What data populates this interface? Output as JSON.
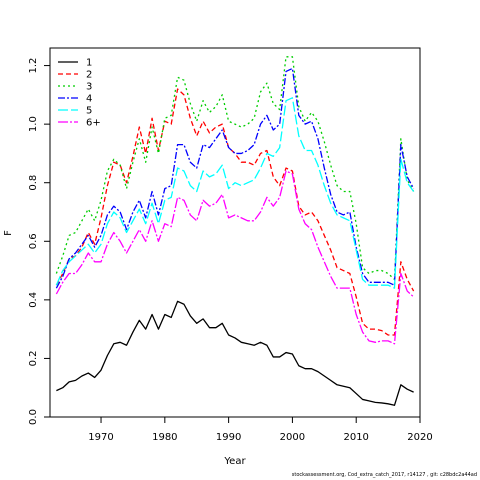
{
  "chart_data": {
    "type": "line",
    "xlabel": "Year",
    "ylabel": "F",
    "xlim": [
      1962,
      2020
    ],
    "ylim": [
      0,
      1.26
    ],
    "x_ticks": [
      1970,
      1980,
      1990,
      2000,
      2010,
      2020
    ],
    "x_tick_labels": [
      "1970",
      "1980",
      "1990",
      "2000",
      "2010",
      "2020"
    ],
    "y_ticks": [
      0,
      0.2,
      0.4,
      0.6,
      0.8,
      1.0,
      1.2
    ],
    "y_tick_labels": [
      "0.0",
      "0.2",
      "0.4",
      "0.6",
      "0.8",
      "1.0",
      "1.2"
    ],
    "legend_position": "top-left",
    "grid": false,
    "x": [
      1963,
      1964,
      1965,
      1966,
      1967,
      1968,
      1969,
      1970,
      1971,
      1972,
      1973,
      1974,
      1975,
      1976,
      1977,
      1978,
      1979,
      1980,
      1981,
      1982,
      1983,
      1984,
      1985,
      1986,
      1987,
      1988,
      1989,
      1990,
      1991,
      1992,
      1993,
      1994,
      1995,
      1996,
      1997,
      1998,
      1999,
      2000,
      2001,
      2002,
      2003,
      2004,
      2005,
      2006,
      2007,
      2008,
      2009,
      2010,
      2011,
      2012,
      2013,
      2014,
      2015,
      2016,
      2017,
      2018,
      2019
    ],
    "series": [
      {
        "name": "1",
        "color": "#000000",
        "dash": "",
        "width": 1.3,
        "values": [
          0.09,
          0.1,
          0.12,
          0.125,
          0.14,
          0.15,
          0.135,
          0.16,
          0.21,
          0.25,
          0.255,
          0.245,
          0.29,
          0.33,
          0.3,
          0.35,
          0.3,
          0.35,
          0.34,
          0.395,
          0.385,
          0.345,
          0.32,
          0.335,
          0.305,
          0.305,
          0.32,
          0.28,
          0.27,
          0.255,
          0.25,
          0.245,
          0.255,
          0.245,
          0.205,
          0.205,
          0.22,
          0.215,
          0.175,
          0.165,
          0.165,
          0.155,
          0.14,
          0.125,
          0.11,
          0.105,
          0.1,
          0.08,
          0.06,
          0.055,
          0.05,
          0.048,
          0.045,
          0.04,
          0.11,
          0.095,
          0.085
        ]
      },
      {
        "name": "2",
        "color": "#ff0000",
        "dash": "5,3",
        "width": 1.3,
        "values": [
          0.45,
          0.49,
          0.54,
          0.55,
          0.58,
          0.63,
          0.59,
          0.68,
          0.79,
          0.87,
          0.86,
          0.8,
          0.89,
          0.99,
          0.9,
          1.02,
          0.91,
          1.01,
          1.0,
          1.12,
          1.1,
          1.02,
          0.96,
          1.01,
          0.97,
          0.99,
          1.0,
          0.92,
          0.9,
          0.87,
          0.87,
          0.86,
          0.9,
          0.91,
          0.82,
          0.79,
          0.85,
          0.84,
          0.72,
          0.69,
          0.7,
          0.67,
          0.62,
          0.57,
          0.51,
          0.5,
          0.49,
          0.41,
          0.32,
          0.3,
          0.3,
          0.295,
          0.28,
          0.28,
          0.53,
          0.47,
          0.43
        ]
      },
      {
        "name": "3",
        "color": "#00cd00",
        "dash": "2,3",
        "width": 1.3,
        "values": [
          0.49,
          0.55,
          0.62,
          0.63,
          0.67,
          0.71,
          0.67,
          0.74,
          0.84,
          0.88,
          0.86,
          0.78,
          0.87,
          0.95,
          0.87,
          0.99,
          0.9,
          1.02,
          1.03,
          1.16,
          1.15,
          1.07,
          1.01,
          1.08,
          1.04,
          1.06,
          1.1,
          1.01,
          1.0,
          0.99,
          1.0,
          1.02,
          1.11,
          1.14,
          1.07,
          1.05,
          1.23,
          1.23,
          1.06,
          1.01,
          1.04,
          1.01,
          0.94,
          0.86,
          0.79,
          0.77,
          0.77,
          0.66,
          0.51,
          0.49,
          0.5,
          0.5,
          0.49,
          0.47,
          0.95,
          0.81,
          0.77
        ]
      },
      {
        "name": "4",
        "color": "#0000ff",
        "dash": "7,2,2,2",
        "width": 1.3,
        "values": [
          0.44,
          0.48,
          0.54,
          0.56,
          0.59,
          0.62,
          0.58,
          0.62,
          0.69,
          0.72,
          0.7,
          0.64,
          0.7,
          0.74,
          0.68,
          0.77,
          0.69,
          0.78,
          0.79,
          0.93,
          0.93,
          0.87,
          0.85,
          0.93,
          0.92,
          0.95,
          0.98,
          0.92,
          0.9,
          0.9,
          0.91,
          0.93,
          1.0,
          1.03,
          0.98,
          1.0,
          1.18,
          1.19,
          1.03,
          1.0,
          1.01,
          0.95,
          0.85,
          0.76,
          0.7,
          0.69,
          0.7,
          0.58,
          0.49,
          0.46,
          0.46,
          0.46,
          0.46,
          0.45,
          0.93,
          0.82,
          0.78
        ]
      },
      {
        "name": "5",
        "color": "#00ffff",
        "dash": "10,3",
        "width": 1.3,
        "values": [
          0.45,
          0.5,
          0.53,
          0.55,
          0.57,
          0.59,
          0.56,
          0.59,
          0.66,
          0.7,
          0.68,
          0.63,
          0.67,
          0.71,
          0.66,
          0.73,
          0.66,
          0.74,
          0.75,
          0.85,
          0.84,
          0.79,
          0.77,
          0.84,
          0.82,
          0.83,
          0.86,
          0.78,
          0.8,
          0.79,
          0.8,
          0.81,
          0.85,
          0.9,
          0.89,
          0.92,
          1.08,
          1.09,
          0.96,
          0.91,
          0.91,
          0.86,
          0.79,
          0.73,
          0.69,
          0.68,
          0.67,
          0.57,
          0.47,
          0.45,
          0.45,
          0.45,
          0.45,
          0.44,
          0.88,
          0.8,
          0.77
        ]
      },
      {
        "name": "6+",
        "color": "#ff00ff",
        "dash": "10,2,2,2",
        "width": 1.3,
        "values": [
          0.42,
          0.46,
          0.49,
          0.49,
          0.52,
          0.56,
          0.53,
          0.53,
          0.59,
          0.63,
          0.6,
          0.56,
          0.6,
          0.64,
          0.6,
          0.67,
          0.6,
          0.66,
          0.65,
          0.75,
          0.74,
          0.69,
          0.67,
          0.74,
          0.72,
          0.73,
          0.76,
          0.68,
          0.69,
          0.68,
          0.67,
          0.67,
          0.7,
          0.75,
          0.72,
          0.75,
          0.84,
          0.83,
          0.71,
          0.66,
          0.64,
          0.58,
          0.53,
          0.48,
          0.44,
          0.44,
          0.44,
          0.35,
          0.29,
          0.26,
          0.255,
          0.26,
          0.26,
          0.25,
          0.49,
          0.43,
          0.41
        ]
      }
    ]
  },
  "footer_note": "stockassessment.org, Cod_extra_catch_2017, r14127 , git: c28bdc2a44ad"
}
